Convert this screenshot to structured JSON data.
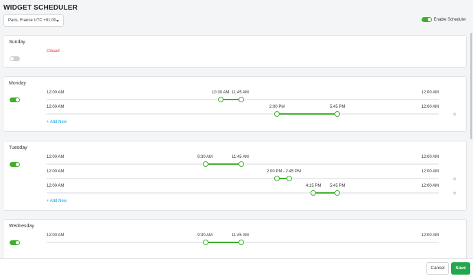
{
  "header": {
    "title": "WIDGET SCHEDULER",
    "timezone_value": "Paris, France UTC +01:00",
    "enable_label": "Enable Scheduler",
    "enable_on": true
  },
  "days": [
    {
      "name": "Sunday",
      "enabled": false,
      "closed_label": "Closed"
    },
    {
      "name": "Monday",
      "enabled": true,
      "add_label": "+ Add New",
      "ranges": [
        {
          "start_label": "12:00 AM",
          "end_label": "12:00 AM",
          "from_label": "10:30 AM",
          "to_label": "11:45 AM"
        },
        {
          "start_label": "12:00 AM",
          "end_label": "12:00 AM",
          "from_label": "2:00 PM",
          "to_label": "5:45 PM"
        }
      ]
    },
    {
      "name": "Tuesday",
      "enabled": true,
      "add_label": "+ Add New",
      "ranges": [
        {
          "start_label": "12:00 AM",
          "end_label": "12:00 AM",
          "from_label": "9:30 AM",
          "to_label": "11:45 AM"
        },
        {
          "start_label": "12:00 AM",
          "end_label": "12:00 AM",
          "combined_label": "2:00 PM - 2:45 PM"
        },
        {
          "start_label": "12:00 AM",
          "end_label": "12:00 AM",
          "from_label": "4:15 PM",
          "to_label": "5:45 PM"
        }
      ]
    },
    {
      "name": "Wednesday",
      "enabled": true,
      "ranges": [
        {
          "start_label": "12:00 AM",
          "end_label": "12:00 AM",
          "from_label": "9:30 AM",
          "to_label": "11:45 AM"
        }
      ]
    }
  ],
  "footer": {
    "cancel_label": "Cancel",
    "save_label": "Save",
    "save_color": "#22a84b"
  },
  "colors": {
    "accent": "#3fae2a",
    "closed": "#e02020",
    "link": "#1aa0e0"
  }
}
